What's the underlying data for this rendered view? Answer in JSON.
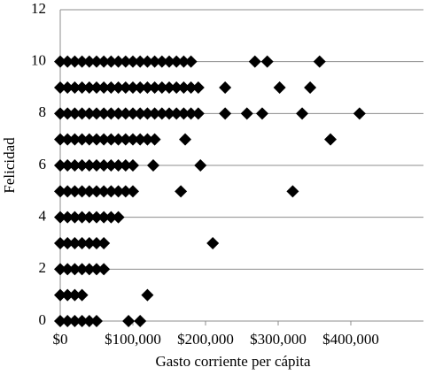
{
  "chart_data": {
    "type": "scatter",
    "xlabel": "Gasto corriente per cápita",
    "ylabel": "Felicidad",
    "color": "#000000",
    "grid": true,
    "xlim": [
      0,
      500000
    ],
    "xticks": [
      {
        "value": 0,
        "label": "$0"
      },
      {
        "value": 100000,
        "label": "$100,000"
      },
      {
        "value": 200000,
        "label": "$200,000"
      },
      {
        "value": 300000,
        "label": "$300,000"
      },
      {
        "value": 400000,
        "label": "$400,000"
      }
    ],
    "ylim": [
      0,
      12
    ],
    "yticks": [
      0,
      2,
      4,
      6,
      8,
      10,
      12
    ],
    "x": [
      0,
      10000,
      20000,
      30000,
      40000,
      50000,
      60000,
      70000,
      80000,
      90000,
      100000,
      110000,
      120000,
      130000,
      140000,
      150000,
      160000,
      170000,
      180000,
      268000,
      285000,
      357000,
      0,
      10000,
      20000,
      30000,
      40000,
      50000,
      60000,
      70000,
      80000,
      90000,
      100000,
      110000,
      120000,
      130000,
      140000,
      150000,
      160000,
      170000,
      180000,
      190000,
      227000,
      302000,
      344000,
      0,
      10000,
      20000,
      30000,
      40000,
      50000,
      60000,
      70000,
      80000,
      90000,
      100000,
      110000,
      120000,
      130000,
      140000,
      150000,
      160000,
      170000,
      180000,
      190000,
      227000,
      257000,
      278000,
      333000,
      412000,
      0,
      10000,
      20000,
      30000,
      40000,
      50000,
      60000,
      70000,
      80000,
      90000,
      100000,
      110000,
      120000,
      130000,
      172000,
      372000,
      0,
      10000,
      20000,
      30000,
      40000,
      50000,
      60000,
      70000,
      80000,
      90000,
      100000,
      128000,
      193000,
      0,
      10000,
      20000,
      30000,
      40000,
      50000,
      60000,
      70000,
      80000,
      90000,
      100000,
      166000,
      320000,
      0,
      10000,
      20000,
      30000,
      40000,
      50000,
      60000,
      70000,
      80000,
      0,
      10000,
      20000,
      30000,
      40000,
      50000,
      60000,
      210000,
      0,
      10000,
      20000,
      30000,
      40000,
      50000,
      60000,
      0,
      10000,
      20000,
      30000,
      120000,
      0,
      10000,
      20000,
      30000,
      40000,
      50000,
      94000,
      110000
    ],
    "y": [
      10,
      10,
      10,
      10,
      10,
      10,
      10,
      10,
      10,
      10,
      10,
      10,
      10,
      10,
      10,
      10,
      10,
      10,
      10,
      10,
      10,
      10,
      9,
      9,
      9,
      9,
      9,
      9,
      9,
      9,
      9,
      9,
      9,
      9,
      9,
      9,
      9,
      9,
      9,
      9,
      9,
      9,
      9,
      9,
      9,
      8,
      8,
      8,
      8,
      8,
      8,
      8,
      8,
      8,
      8,
      8,
      8,
      8,
      8,
      8,
      8,
      8,
      8,
      8,
      8,
      8,
      8,
      8,
      8,
      8,
      7,
      7,
      7,
      7,
      7,
      7,
      7,
      7,
      7,
      7,
      7,
      7,
      7,
      7,
      7,
      7,
      6,
      6,
      6,
      6,
      6,
      6,
      6,
      6,
      6,
      6,
      6,
      6,
      6,
      5,
      5,
      5,
      5,
      5,
      5,
      5,
      5,
      5,
      5,
      5,
      5,
      5,
      4,
      4,
      4,
      4,
      4,
      4,
      4,
      4,
      4,
      3,
      3,
      3,
      3,
      3,
      3,
      3,
      3,
      2,
      2,
      2,
      2,
      2,
      2,
      2,
      1,
      1,
      1,
      1,
      1,
      0,
      0,
      0,
      0,
      0,
      0,
      0,
      0
    ]
  }
}
